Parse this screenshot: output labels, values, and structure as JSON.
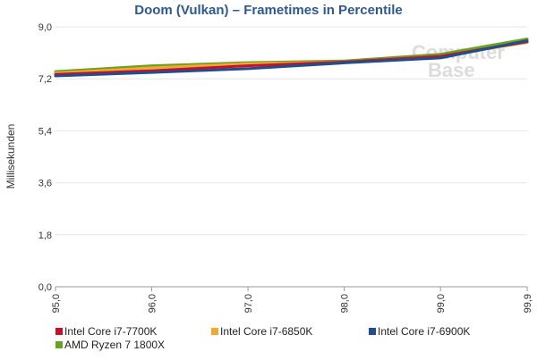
{
  "chart_data": {
    "type": "line",
    "title": "Doom (Vulkan) – Frametimes in Percentile",
    "ylabel": "Millisekunden",
    "xlabel": "",
    "x": [
      95.0,
      96.0,
      97.0,
      98.0,
      99.0,
      99.9
    ],
    "x_tick_labels": [
      "95,0",
      "96,0",
      "97,0",
      "98,0",
      "99,0",
      "99,9"
    ],
    "ylim": [
      0,
      9
    ],
    "y_ticks": [
      0,
      1.8,
      3.6,
      5.4,
      7.2,
      9.0
    ],
    "y_tick_labels": [
      "0,0",
      "1,8",
      "3,6",
      "5,4",
      "7,2",
      "9,0"
    ],
    "grid": true,
    "legend_position": "bottom",
    "series": [
      {
        "name": "Intel Core i7-7700K",
        "color": "#c8102e",
        "values": [
          7.35,
          7.48,
          7.65,
          7.78,
          7.98,
          8.48
        ]
      },
      {
        "name": "Intel Core i7-6850K",
        "color": "#f0a830",
        "values": [
          7.4,
          7.58,
          7.72,
          7.78,
          7.98,
          8.46
        ]
      },
      {
        "name": "Intel Core i7-6900K",
        "color": "#1f4e8c",
        "values": [
          7.3,
          7.42,
          7.55,
          7.75,
          7.92,
          8.52
        ]
      },
      {
        "name": "AMD Ryzen 7 1800X",
        "color": "#6aa121",
        "values": [
          7.45,
          7.65,
          7.76,
          7.82,
          8.05,
          8.58
        ]
      }
    ]
  },
  "watermark": {
    "line1": "Computer",
    "line2": "Base"
  }
}
